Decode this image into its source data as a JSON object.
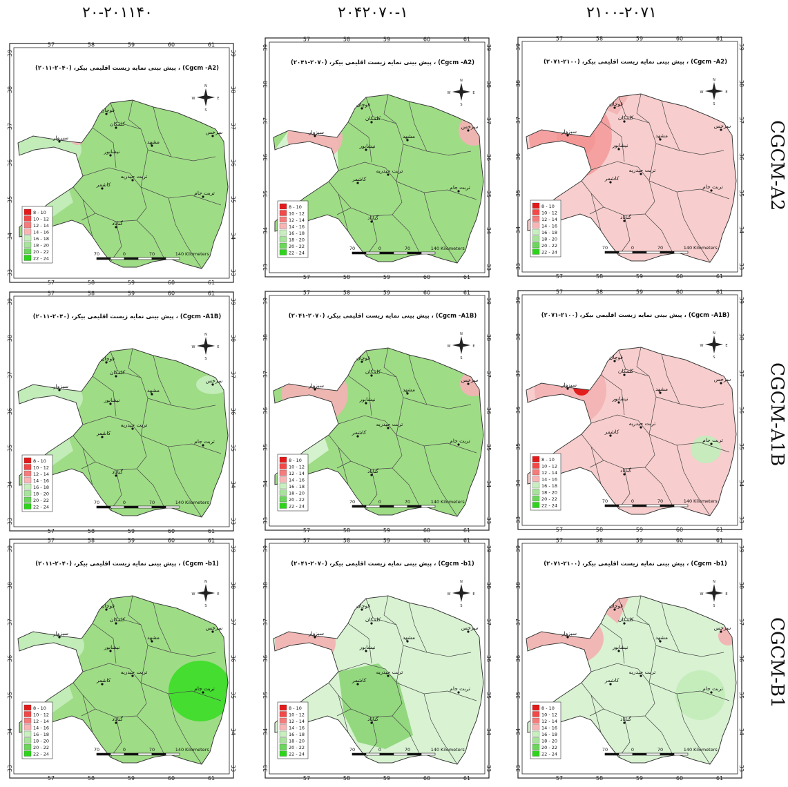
{
  "columns": [
    "٢٠١١-٢٠۴٠",
    "٢٠۴١-٢٠٧٠",
    "٢٠٧١-٢١٠٠"
  ],
  "rows": [
    "CGCM-A2",
    "CGCM-A1B",
    "CGCM-B1"
  ],
  "map_titles": [
    [
      "پیش بینی نمایه زیست اقلیمی بیکر، (۲۰۴۰-۲۰۱۱) ، (Cgcm -A2)",
      "پیش بینی نمایه زیست اقلیمی بیکر، (۲۰۷۰-۲۰۴۱) ، (Cgcm -A2)",
      "پیش بینی نمایه زیست اقلیمی بیکر، (۲۱۰۰-۲۰۷۱) ، (Cgcm -A2)"
    ],
    [
      "پیش بینی نمایه زیست اقلیمی بیکر، (۲۰۴۰-۲۰۱۱) ، (Cgcm -A1B)",
      "پیش بینی نمایه زیست اقلیمی بیکر، (۲۰۷۰-۲۰۴۱) ، (Cgcm -A1B)",
      "پیش بینی نمایه زیست اقلیمی بیکر، (۲۱۰۰-۲۰۷۱) ، (Cgcm -A1B)"
    ],
    [
      "پیش بینی نمایه زیست اقلیمی بیکر، (۲۰۴۰-۲۰۱۱) ، (Cgcm -b1)",
      "پیش بینی نمایه زیست اقلیمی بیکر، (۲۰۷۰-۲۰۴۱) ، (Cgcm -b1)",
      "پیش بینی نمایه زیست اقلیمی بیکر، (۲۱۰۰-۲۰۷۱) ، (Cgcm -b1)"
    ]
  ],
  "legend": {
    "classes": [
      "8 - 10",
      "10 - 12",
      "12 - 14",
      "14 - 16",
      "16 - 18",
      "18 - 20",
      "20 - 22",
      "22 - 24"
    ],
    "colors": [
      "#e41a1a",
      "#f24848",
      "#f57c7c",
      "#f9b5b5",
      "#c9efc0",
      "#a7e39a",
      "#6bd65b",
      "#2ed41c"
    ]
  },
  "scale_bar": {
    "ticks": [
      "70",
      "0",
      "70",
      "140"
    ],
    "unit": "Kilometers"
  },
  "longitude_ticks": [
    "57",
    "58",
    "59",
    "60",
    "61"
  ],
  "latitude_ticks": [
    "33",
    "34",
    "35",
    "36",
    "37",
    "38",
    "39"
  ],
  "north_arrow": {
    "n": "N",
    "s": "S",
    "e": "E",
    "w": "W"
  },
  "cities": [
    "قوچان",
    "کلمکان",
    "مشهد",
    "سرخس",
    "سبزوار",
    "نیشابور",
    "تربت حیدریه",
    "کاشمر",
    "تربت جام",
    "گناباد"
  ],
  "map_colors": {
    "base_green": "#9fdc86",
    "light_green": "#c4ecbb",
    "very_light_green": "#d8f2d2",
    "pink": "#f2b3b3",
    "light_pink": "#f7cdcd",
    "red": "#e11414",
    "bright_green": "#3fdc2b"
  }
}
